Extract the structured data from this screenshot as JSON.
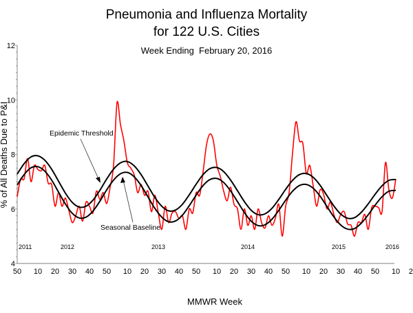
{
  "chart_data": {
    "type": "line",
    "title": "Pneumonia and Influenza Mortality",
    "title_line2": "for 122 U.S. Cities",
    "subtitle": "Week Ending  February 20, 2016",
    "xlabel": "MMWR Week",
    "ylabel": "% of All Deaths Due to P&I",
    "ylim": [
      4,
      12
    ],
    "y_ticks": [
      "4",
      "6",
      "8",
      "10",
      "12"
    ],
    "x_tick_labels": [
      "50",
      "10",
      "20",
      "30",
      "40",
      "50",
      "10",
      "20",
      "30",
      "40",
      "50",
      "10",
      "20",
      "30",
      "40",
      "50",
      "10",
      "20",
      "30",
      "40",
      "50",
      "10",
      "20",
      "30",
      "40",
      "50"
    ],
    "year_labels": [
      "2011",
      "2012",
      "2013",
      "2014",
      "2015",
      "2016"
    ],
    "x_start": "2010 week 50",
    "grid": false,
    "colors": {
      "observed": "#ff0000",
      "baseline": "#000000",
      "threshold": "#000000",
      "axis": "#999999"
    },
    "annotations": {
      "threshold": "Epidemic Threshold",
      "baseline": "Seasonal Baseline"
    },
    "observed_step_weeks": 2,
    "observed": [
      6.45,
      7.1,
      7.1,
      7.85,
      7.0,
      7.6,
      7.45,
      7.4,
      7.6,
      6.95,
      6.9,
      6.1,
      6.6,
      6.1,
      6.4,
      5.95,
      5.5,
      5.75,
      6.1,
      5.55,
      6.25,
      6.1,
      5.85,
      6.65,
      6.35,
      6.6,
      6.2,
      6.8,
      7.6,
      9.9,
      9.1,
      8.5,
      7.7,
      7.5,
      7.25,
      6.6,
      6.9,
      6.5,
      6.65,
      5.9,
      6.5,
      5.85,
      5.25,
      6.1,
      5.5,
      5.85,
      5.9,
      5.65,
      5.75,
      5.25,
      6.0,
      5.85,
      6.6,
      6.5,
      7.35,
      8.35,
      8.75,
      8.5,
      7.6,
      7.2,
      6.65,
      6.3,
      6.8,
      6.17,
      6.0,
      5.25,
      6.0,
      5.4,
      5.75,
      5.25,
      6.0,
      5.5,
      5.3,
      5.75,
      5.4,
      5.65,
      6.17,
      5.0,
      6.1,
      6.6,
      8.05,
      9.2,
      8.5,
      8.4,
      7.3,
      7.6,
      6.85,
      6.1,
      6.7,
      6.55,
      6.0,
      6.25,
      5.8,
      5.5,
      5.8,
      5.9,
      5.45,
      5.4,
      5.0,
      5.5,
      5.5,
      5.8,
      5.25,
      6.05,
      6.1,
      6.05,
      5.9,
      7.7,
      6.7,
      6.4,
      7.1
    ],
    "baseline_step_weeks": 4,
    "baseline": [
      6.88,
      7.26,
      7.51,
      7.55,
      7.39,
      7.06,
      6.62,
      6.18,
      5.84,
      5.67,
      5.7,
      5.92,
      6.28,
      6.7,
      7.06,
      7.29,
      7.34,
      7.18,
      6.86,
      6.44,
      6.02,
      5.7,
      5.53,
      5.56,
      5.77,
      6.12,
      6.51,
      6.86,
      7.08,
      7.12,
      6.97,
      6.66,
      6.27,
      5.87,
      5.55,
      5.39,
      5.42,
      5.62,
      5.95,
      6.32,
      6.65,
      6.86,
      6.9,
      6.76,
      6.47,
      6.09,
      5.71,
      5.41,
      5.26,
      5.28,
      5.48,
      5.79,
      6.14,
      6.45,
      6.65,
      6.68
    ],
    "threshold_offset": 0.4
  }
}
